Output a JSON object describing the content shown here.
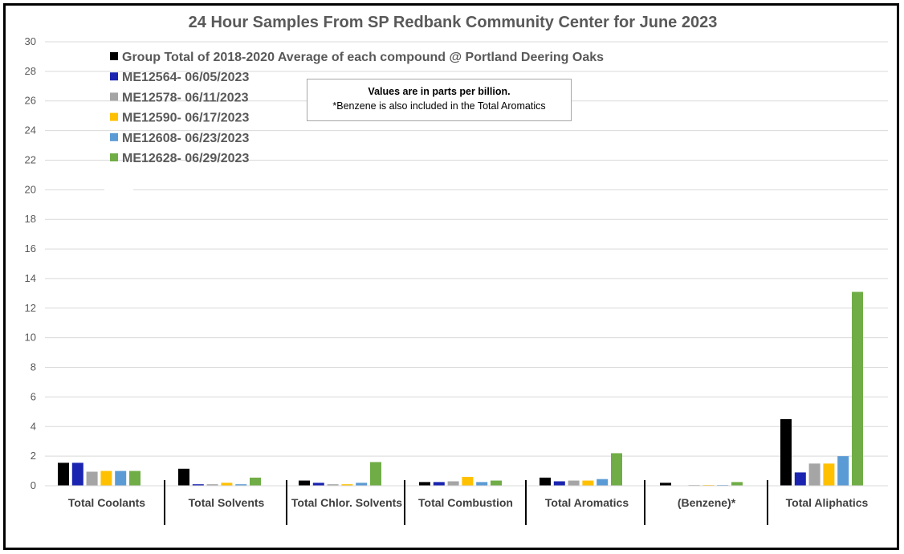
{
  "chart_data": {
    "type": "bar",
    "title": "24 Hour Samples From SP Redbank Community Center for June 2023",
    "xlabel": "",
    "ylabel": "",
    "ylim": [
      0,
      30
    ],
    "yticks": [
      0,
      2,
      4,
      6,
      8,
      10,
      12,
      14,
      16,
      18,
      20,
      22,
      24,
      26,
      28,
      30
    ],
    "grid": true,
    "legend_position": "top-left",
    "categories": [
      "Total Coolants",
      "Total Solvents",
      "Total Chlor. Solvents",
      "Total Combustion",
      "Total Aromatics",
      "(Benzene)*",
      "Total Aliphatics"
    ],
    "series": [
      {
        "name": "Group Total of 2018-2020 Average of each compound @ Portland Deering Oaks",
        "color": "#000000",
        "values": [
          1.55,
          1.15,
          0.35,
          0.25,
          0.55,
          0.2,
          4.5
        ]
      },
      {
        "name": "ME12564- 06/05/2023",
        "color": "#1a24b0",
        "values": [
          1.55,
          0.1,
          0.2,
          0.25,
          0.3,
          0.0,
          0.9
        ]
      },
      {
        "name": "ME12578- 06/11/2023",
        "color": "#a5a5a5",
        "values": [
          0.95,
          0.1,
          0.1,
          0.3,
          0.35,
          0.05,
          1.5
        ]
      },
      {
        "name": "ME12590- 06/17/2023",
        "color": "#ffc000",
        "values": [
          1.0,
          0.2,
          0.1,
          0.6,
          0.35,
          0.05,
          1.5
        ]
      },
      {
        "name": "ME12608- 06/23/2023",
        "color": "#5b9bd5",
        "values": [
          1.0,
          0.1,
          0.2,
          0.25,
          0.45,
          0.05,
          2.0
        ]
      },
      {
        "name": "ME12628- 06/29/2023",
        "color": "#70ad47",
        "values": [
          1.0,
          0.55,
          1.6,
          0.35,
          2.2,
          0.25,
          13.1
        ]
      }
    ],
    "annotation": {
      "line1": "Values are in parts per billion.",
      "line2": "*Benzene is also included in the Total Aromatics"
    }
  }
}
